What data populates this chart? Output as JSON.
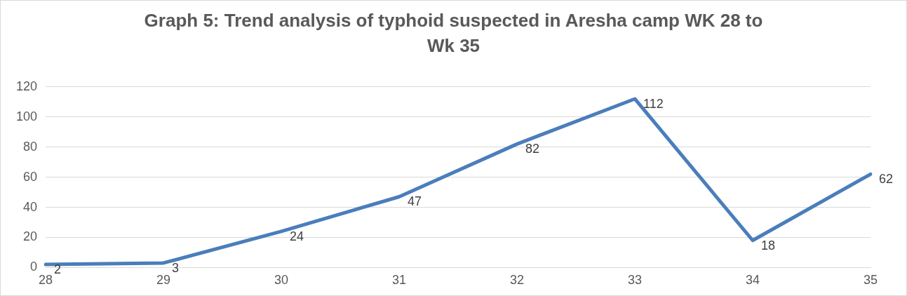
{
  "chart_data": {
    "type": "line",
    "title": "Graph 5: Trend analysis of typhoid suspected in Aresha camp WK 28 to Wk 35",
    "categories": [
      "28",
      "29",
      "30",
      "31",
      "32",
      "33",
      "34",
      "35"
    ],
    "series": [
      {
        "color": "#4a7ebb",
        "values": [
          2,
          3,
          24,
          47,
          82,
          112,
          18,
          62
        ]
      }
    ],
    "ylim": [
      0,
      120
    ],
    "yticks": [
      0,
      20,
      40,
      60,
      80,
      100,
      120
    ],
    "grid": "y",
    "legend": false,
    "marker": "none",
    "line_style": "solid",
    "data_labels": true
  }
}
